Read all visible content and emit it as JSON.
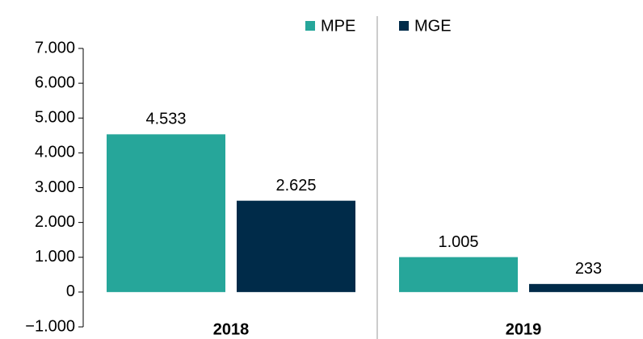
{
  "chart_data": {
    "type": "bar",
    "categories": [
      "2018",
      "2019"
    ],
    "series": [
      {
        "name": "MPE",
        "color": "#26a69a",
        "values": [
          4533,
          1005
        ],
        "value_labels": [
          "4.533",
          "1.005"
        ]
      },
      {
        "name": "MGE",
        "color": "#002b49",
        "values": [
          2625,
          233
        ],
        "value_labels": [
          "2.625",
          "233"
        ]
      }
    ],
    "ylim": [
      -1000,
      7000
    ],
    "yticks": [
      {
        "value": -1000,
        "label": "−1.000"
      },
      0,
      {
        "value": 1000,
        "label": "1.000"
      },
      {
        "value": 2000,
        "label": "2.000"
      },
      {
        "value": 3000,
        "label": "3.000"
      },
      {
        "value": 4000,
        "label": "4.000"
      },
      {
        "value": 5000,
        "label": "5.000"
      },
      {
        "value": 6000,
        "label": "6.000"
      },
      {
        "value": 7000,
        "label": "7.000"
      }
    ],
    "grid": false,
    "legend": "top"
  }
}
